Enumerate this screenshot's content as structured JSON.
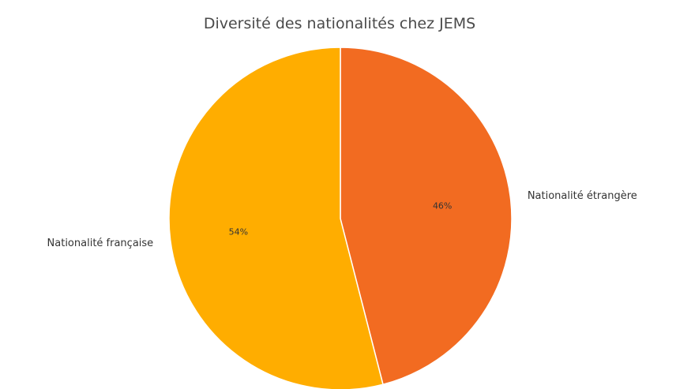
{
  "chart_data": {
    "type": "pie",
    "title": "Diversité des nationalités chez JEMS",
    "slices": [
      {
        "label": "Nationalité étrangère",
        "value": 46,
        "percent_label": "46%",
        "color": "#f26b21"
      },
      {
        "label": "Nationalité française",
        "value": 54,
        "percent_label": "54%",
        "color": "#ffad00"
      }
    ],
    "start_angle_deg": 90,
    "direction": "clockwise",
    "wedge_edge_color": "#ffffff"
  }
}
